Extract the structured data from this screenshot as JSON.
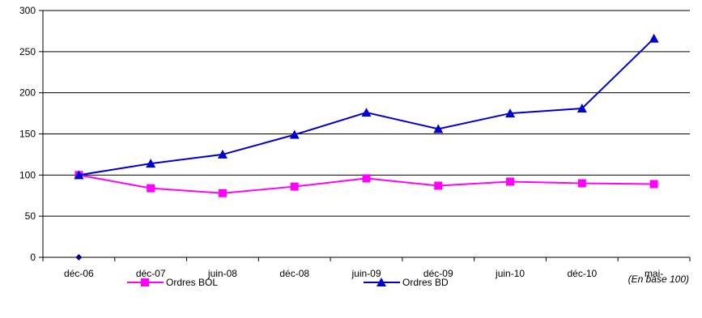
{
  "chart_data": {
    "type": "line",
    "categories": [
      "déc-06",
      "déc-07",
      "juin-08",
      "déc-08",
      "juin-09",
      "déc-09",
      "juin-10",
      "déc-10",
      "mai-"
    ],
    "series": [
      {
        "name": "Ordres BOL",
        "values": [
          100,
          84,
          78,
          86,
          96,
          87,
          92,
          90,
          89
        ],
        "color": "#ff00ff",
        "marker": "square"
      },
      {
        "name": "Ordres BD",
        "values": [
          100,
          114,
          125,
          149,
          176,
          156,
          175,
          181,
          266
        ],
        "color": "#0000cc",
        "marker": "triangle"
      }
    ],
    "extra_points": [
      {
        "category": "déc-06",
        "value": 0,
        "color": "#000080",
        "marker": "diamond"
      }
    ],
    "yticks": [
      0,
      50,
      100,
      150,
      200,
      250,
      300
    ],
    "ylim": [
      0,
      300
    ],
    "grid": "horizontal",
    "legend_position": "bottom",
    "note": "(En base 100)"
  }
}
